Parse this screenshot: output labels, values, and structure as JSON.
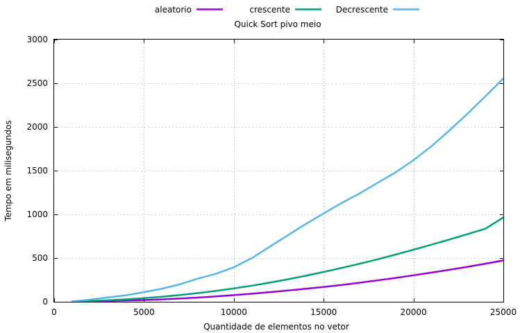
{
  "chart_data": {
    "type": "line",
    "title": "Quick Sort pivo meio",
    "xlabel": "Quantidade de elementos no vetor",
    "ylabel": "Tempo em milisegundos",
    "xlim": [
      0,
      25000
    ],
    "ylim": [
      0,
      3000
    ],
    "xticks": [
      0,
      5000,
      10000,
      15000,
      20000,
      25000
    ],
    "yticks": [
      0,
      500,
      1000,
      1500,
      2000,
      2500,
      3000
    ],
    "grid": true,
    "legend_position": "top",
    "series": [
      {
        "name": "aleatorio",
        "color": "#9400d3",
        "x": [
          1000,
          2000,
          3000,
          4000,
          5000,
          6000,
          7000,
          8000,
          9000,
          10000,
          11000,
          12000,
          13000,
          14000,
          15000,
          16000,
          17000,
          18000,
          19000,
          20000,
          21000,
          22000,
          23000,
          24000,
          25000
        ],
        "y": [
          2,
          5,
          9,
          14,
          20,
          28,
          37,
          48,
          61,
          76,
          92,
          110,
          129,
          149,
          170,
          193,
          218,
          245,
          273,
          303,
          334,
          366,
          400,
          436,
          473
        ]
      },
      {
        "name": "crescente",
        "color": "#009e73",
        "x": [
          1000,
          2000,
          3000,
          4000,
          5000,
          6000,
          7000,
          8000,
          9000,
          10000,
          11000,
          12000,
          13000,
          14000,
          15000,
          16000,
          17000,
          18000,
          19000,
          20000,
          21000,
          22000,
          23000,
          24000,
          25000
        ],
        "y": [
          3,
          9,
          17,
          28,
          42,
          58,
          77,
          99,
          124,
          152,
          184,
          219,
          257,
          298,
          341,
          387,
          435,
          486,
          540,
          596,
          653,
          713,
          773,
          836,
          965
        ]
      },
      {
        "name": "Decrescente",
        "color": "#56b4e9",
        "x": [
          1000,
          2000,
          3000,
          4000,
          5000,
          6000,
          7000,
          8000,
          9000,
          10000,
          11000,
          12000,
          13000,
          14000,
          15000,
          16000,
          17000,
          18000,
          19000,
          20000,
          21000,
          22000,
          23000,
          24000,
          25000
        ],
        "y": [
          5,
          25,
          50,
          75,
          110,
          150,
          200,
          265,
          320,
          395,
          500,
          630,
          760,
          890,
          1010,
          1130,
          1240,
          1360,
          1480,
          1620,
          1780,
          1960,
          2150,
          2350,
          2555
        ]
      }
    ]
  }
}
